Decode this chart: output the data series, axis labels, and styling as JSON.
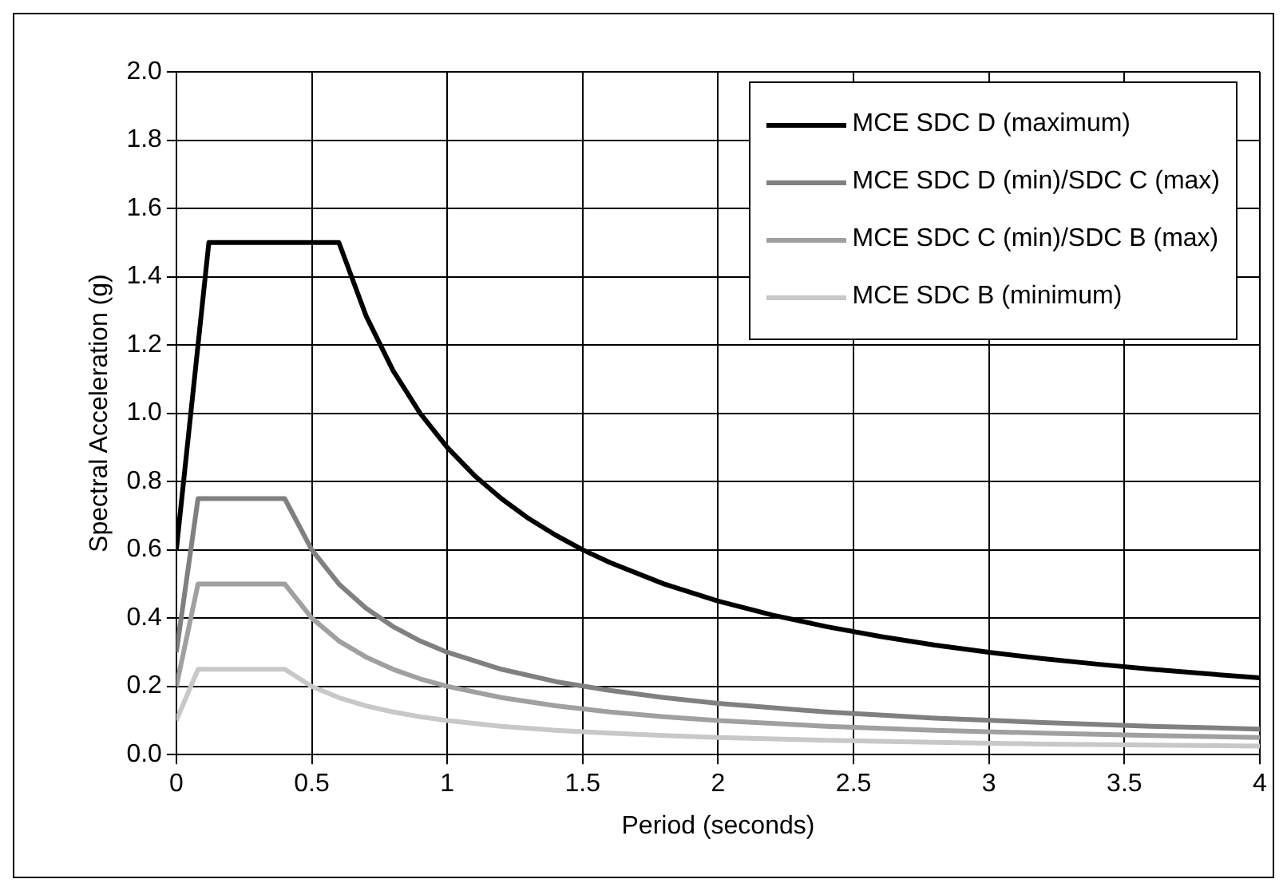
{
  "chart_data": {
    "type": "line",
    "xlabel": "Period (seconds)",
    "ylabel": "Spectral Acceleration (g)",
    "xlim": [
      0,
      4
    ],
    "xticks": [
      0,
      0.5,
      1,
      1.5,
      2,
      2.5,
      3,
      3.5,
      4
    ],
    "ylim": [
      0,
      2
    ],
    "yticks": [
      {
        "value": 0,
        "label": "0.0"
      },
      {
        "value": 0.2,
        "label": "0.2"
      },
      {
        "value": 0.4,
        "label": "0.4"
      },
      {
        "value": 0.6,
        "label": "0.6"
      },
      {
        "value": 0.8,
        "label": "0.8"
      },
      {
        "value": 1,
        "label": "1.0"
      },
      {
        "value": 1.2,
        "label": "1.2"
      },
      {
        "value": 1.4,
        "label": "1.4"
      },
      {
        "value": 1.6,
        "label": "1.6"
      },
      {
        "value": 1.8,
        "label": "1.8"
      },
      {
        "value": 2,
        "label": "2.0"
      }
    ],
    "grid": true,
    "legend": "top right",
    "marker": "none",
    "line_style": "solid",
    "series": [
      {
        "name": "MCE SDC D (maximum)",
        "color": "#000000",
        "x": [
          0,
          0.12,
          0.6,
          0.7,
          0.8,
          0.9,
          1.0,
          1.1,
          1.2,
          1.3,
          1.4,
          1.5,
          1.6,
          1.8,
          2.0,
          2.2,
          2.4,
          2.6,
          2.8,
          3.0,
          3.2,
          3.4,
          3.6,
          3.8,
          4.0
        ],
        "values": [
          0.6,
          1.5,
          1.5,
          1.286,
          1.125,
          1.0,
          0.9,
          0.818,
          0.75,
          0.692,
          0.643,
          0.6,
          0.563,
          0.5,
          0.45,
          0.409,
          0.375,
          0.346,
          0.321,
          0.3,
          0.281,
          0.265,
          0.25,
          0.237,
          0.225
        ]
      },
      {
        "name": "MCE SDC D (min)/SDC C (max)",
        "color": "#808080",
        "x": [
          0,
          0.08,
          0.4,
          0.5,
          0.6,
          0.7,
          0.8,
          0.9,
          1.0,
          1.2,
          1.4,
          1.6,
          1.8,
          2.0,
          2.4,
          2.8,
          3.2,
          3.6,
          4.0
        ],
        "values": [
          0.3,
          0.75,
          0.75,
          0.6,
          0.5,
          0.429,
          0.375,
          0.333,
          0.3,
          0.25,
          0.214,
          0.188,
          0.167,
          0.15,
          0.125,
          0.107,
          0.094,
          0.083,
          0.075
        ]
      },
      {
        "name": "MCE SDC C (min)/SDC B (max)",
        "color": "#a0a0a0",
        "x": [
          0,
          0.08,
          0.4,
          0.5,
          0.6,
          0.7,
          0.8,
          0.9,
          1.0,
          1.2,
          1.4,
          1.6,
          1.8,
          2.0,
          2.4,
          2.8,
          3.2,
          3.6,
          4.0
        ],
        "values": [
          0.2,
          0.5,
          0.5,
          0.4,
          0.333,
          0.286,
          0.25,
          0.222,
          0.2,
          0.167,
          0.143,
          0.125,
          0.111,
          0.1,
          0.083,
          0.071,
          0.063,
          0.056,
          0.05
        ]
      },
      {
        "name": "MCE SDC B (minimum)",
        "color": "#c8c8c8",
        "x": [
          0,
          0.08,
          0.4,
          0.5,
          0.6,
          0.7,
          0.8,
          0.9,
          1.0,
          1.2,
          1.4,
          1.6,
          1.8,
          2.0,
          2.4,
          2.8,
          3.2,
          3.6,
          4.0
        ],
        "values": [
          0.1,
          0.25,
          0.25,
          0.2,
          0.167,
          0.143,
          0.125,
          0.111,
          0.1,
          0.083,
          0.071,
          0.063,
          0.056,
          0.05,
          0.042,
          0.036,
          0.031,
          0.028,
          0.025
        ]
      }
    ]
  }
}
